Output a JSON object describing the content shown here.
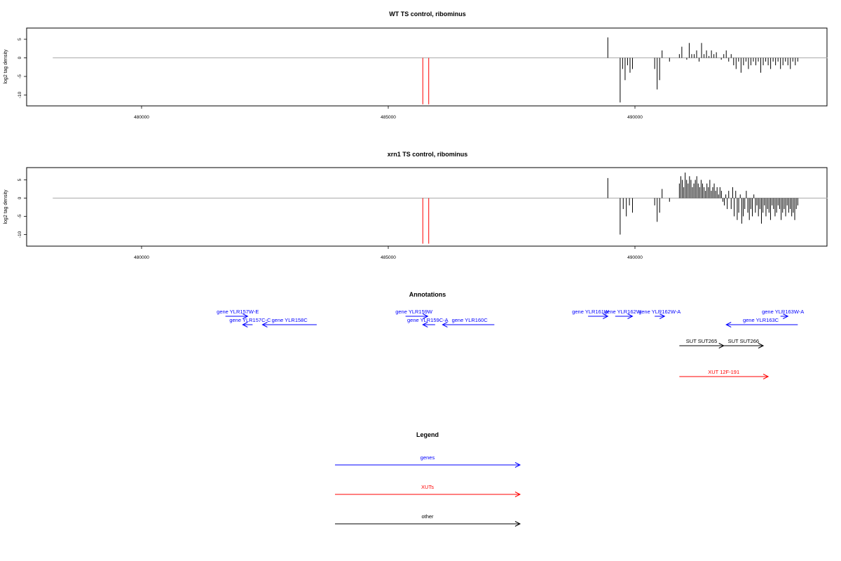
{
  "colors": {
    "genes": "#0000ff",
    "xuts": "#ff0000",
    "other": "#000000",
    "baseline": "#aaaaaa"
  },
  "chart_data": [
    {
      "type": "bar",
      "id": "wt",
      "title": "WT TS control, ribominus",
      "ylabel": "log2 tag density",
      "xlim": [
        478200,
        493900
      ],
      "ylim": [
        -13,
        8
      ],
      "x_ticks": [
        480000,
        485000,
        490000
      ],
      "y_ticks": [
        5,
        0,
        -5,
        -10
      ],
      "markers": [
        485700,
        485820
      ],
      "profile": {
        "step": 50,
        "ranges": [
          {
            "x0": 489450,
            "x1": 489470,
            "vals": [
              5.5
            ]
          },
          {
            "x0": 489700,
            "x1": 489950,
            "vals": [
              -12,
              -3,
              -6,
              -2,
              -4,
              -3
            ]
          },
          {
            "x0": 490400,
            "x1": 490500,
            "vals": [
              -3,
              -8.5,
              -6
            ]
          },
          {
            "x0": 490550,
            "x1": 490600,
            "vals": [
              2
            ]
          },
          {
            "x0": 490700,
            "x1": 490750,
            "vals": [
              -1
            ]
          },
          {
            "x0": 490900,
            "x1": 491850,
            "vals": [
              1,
              3,
              0,
              -0.5,
              4,
              1,
              1,
              2,
              -1,
              4,
              1,
              2,
              0.5,
              2,
              1,
              1.5,
              0,
              -0.5,
              1,
              2
            ]
          },
          {
            "x0": 491900,
            "x1": 493300,
            "vals": [
              -1,
              1,
              -2,
              -3,
              -1,
              -4,
              -2,
              -1,
              -3,
              -2,
              -1,
              -2,
              -1,
              -4,
              -2,
              -1,
              -2,
              -3,
              -1,
              -2,
              -1,
              -3,
              -2,
              -1,
              -2,
              -3,
              -1,
              -2,
              -1
            ]
          }
        ]
      }
    },
    {
      "type": "bar",
      "id": "xrn1",
      "title": "xrn1 TS control, ribominus",
      "ylabel": "log2 tag density",
      "xlim": [
        478200,
        493900
      ],
      "ylim": [
        -13,
        8
      ],
      "x_ticks": [
        480000,
        485000,
        490000
      ],
      "y_ticks": [
        5,
        0,
        -5,
        -10
      ],
      "markers": [
        485700,
        485820
      ],
      "profile": {
        "step": 30,
        "ranges": [
          {
            "x0": 489450,
            "x1": 489470,
            "vals": [
              5.5
            ]
          },
          {
            "x0": 489700,
            "x1": 489950,
            "vals": [
              -10,
              -3,
              -5,
              -2,
              -4
            ]
          },
          {
            "x0": 490400,
            "x1": 490500,
            "vals": [
              -2,
              -6.5,
              -4
            ]
          },
          {
            "x0": 490550,
            "x1": 490600,
            "vals": [
              2.5
            ]
          },
          {
            "x0": 490700,
            "x1": 490750,
            "vals": [
              -1
            ]
          },
          {
            "x0": 490900,
            "x1": 491900,
            "vals": [
              4,
              6,
              5,
              3,
              7,
              5,
              4,
              6,
              5,
              3,
              4,
              5,
              6,
              4,
              3,
              5,
              4,
              3,
              2,
              4,
              3,
              5,
              2,
              3,
              4,
              2,
              3,
              1,
              3,
              2,
              -1,
              -2,
              1,
              -3,
              2
            ]
          },
          {
            "x0": 491950,
            "x1": 493300,
            "vals": [
              -3,
              3,
              -5,
              2,
              -6,
              -4,
              1,
              -7,
              -5,
              -3,
              2,
              -4,
              -6,
              -3,
              -5,
              1,
              -4,
              -2,
              -5,
              -3,
              -7,
              -4,
              -2,
              -5,
              -3,
              -4,
              -6,
              -2,
              -3,
              -5,
              -4,
              -2,
              -3,
              -6,
              -4,
              -3,
              -5,
              -2,
              -4,
              -3,
              -5,
              -4,
              -6,
              -3,
              -2
            ]
          }
        ]
      }
    }
  ],
  "annotations": {
    "title": "Annotations",
    "xlim": [
      478200,
      493900
    ],
    "features": [
      {
        "label": "gene YLR157W-E",
        "kind": "genes",
        "start": 481700,
        "end": 482150,
        "row": 0,
        "label_x": 481950,
        "strand": "+"
      },
      {
        "label": "gene YLR157C-C",
        "kind": "genes",
        "start": 482250,
        "end": 482050,
        "row": 1,
        "label_x": 482200,
        "strand": "-"
      },
      {
        "label": "gene YLR158C",
        "kind": "genes",
        "start": 483550,
        "end": 482450,
        "row": 1,
        "label_x": 483000,
        "strand": "-"
      },
      {
        "label": "gene YLR159W",
        "kind": "genes",
        "start": 485350,
        "end": 485800,
        "row": 0,
        "label_x": 485520,
        "strand": "+"
      },
      {
        "label": "gene YLR159C-A",
        "kind": "genes",
        "start": 485950,
        "end": 485700,
        "row": 1,
        "label_x": 485800,
        "strand": "-"
      },
      {
        "label": "gene YLR160C",
        "kind": "genes",
        "start": 487150,
        "end": 486100,
        "row": 1,
        "label_x": 486650,
        "strand": "-"
      },
      {
        "label": "gene YLR161W",
        "kind": "genes",
        "start": 489050,
        "end": 489450,
        "row": 0,
        "label_x": 489100,
        "strand": "+"
      },
      {
        "label": "gene YLR162W",
        "kind": "genes",
        "start": 489600,
        "end": 489950,
        "row": 0,
        "label_x": 489750,
        "strand": "+"
      },
      {
        "label": "gene YLR162W-A",
        "kind": "genes",
        "start": 490400,
        "end": 490600,
        "row": 0,
        "label_x": 490500,
        "strand": "+"
      },
      {
        "label": "gene YLR163W-A",
        "kind": "genes",
        "start": 492950,
        "end": 493100,
        "row": 0,
        "label_x": 493000,
        "strand": "+"
      },
      {
        "label": "gene YLR163C",
        "kind": "genes",
        "start": 493300,
        "end": 491850,
        "row": 1,
        "label_x": 492550,
        "strand": "-"
      },
      {
        "label": "SUT SUT265",
        "kind": "other",
        "start": 490900,
        "end": 491800,
        "row": 3,
        "label_x": 491350,
        "strand": "+"
      },
      {
        "label": "SUT SUT266",
        "kind": "other",
        "start": 491800,
        "end": 492600,
        "row": 3,
        "label_x": 492200,
        "strand": "+"
      },
      {
        "label": "XUT 12F-191",
        "kind": "xuts",
        "start": 490900,
        "end": 492700,
        "row": 5,
        "label_x": 491800,
        "strand": "+"
      }
    ]
  },
  "legend": {
    "title": "Legend",
    "items": [
      {
        "label": "genes",
        "kind": "genes"
      },
      {
        "label": "XUTs",
        "kind": "xuts"
      },
      {
        "label": "other",
        "kind": "other"
      }
    ]
  }
}
